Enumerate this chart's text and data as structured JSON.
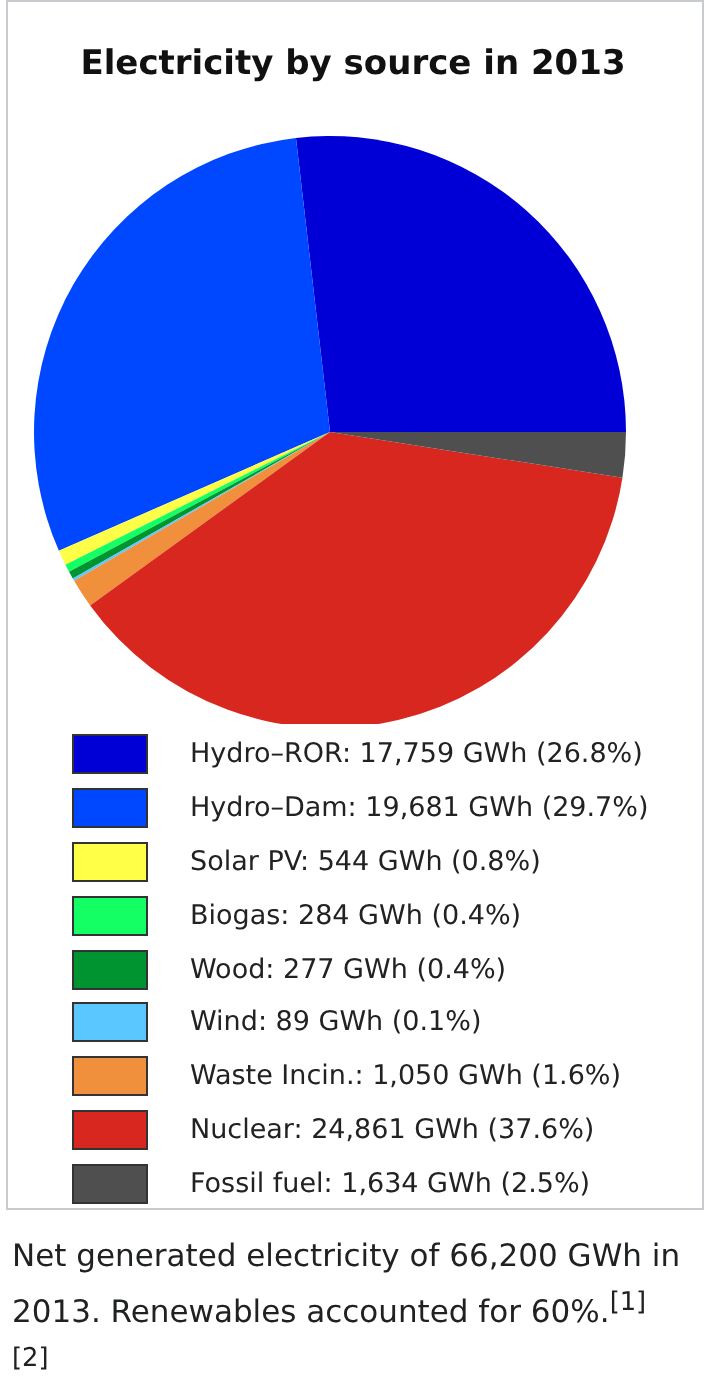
{
  "chart_data": {
    "type": "pie",
    "title": "Electricity by source in 2013",
    "categories": [
      "Hydro–ROR",
      "Hydro–Dam",
      "Solar PV",
      "Biogas",
      "Wood",
      "Wind",
      "Waste Incin.",
      "Nuclear",
      "Fossil fuel"
    ],
    "values": [
      17759,
      19681,
      544,
      284,
      277,
      89,
      1050,
      24861,
      1634
    ],
    "value_labels": [
      ": 17,759 GWh (26.8%)",
      ": 19,681 GWh (29.7%)",
      ": 544 GWh (0.8%)",
      ": 284 GWh (0.4%)",
      ": 277 GWh (0.4%)",
      ": 89 GWh (0.1%)",
      ": 1,050 GWh (1.6%)",
      ": 24,861 GWh (37.6%)",
      ": 1,634 GWh (2.5%)"
    ],
    "colors": [
      "#0000d6",
      "#0048ff",
      "#ffff47",
      "#14ff63",
      "#009431",
      "#5ac8ff",
      "#f08f3c",
      "#d8271e",
      "#4f4f4f"
    ],
    "legend": "bottom",
    "annotations": [
      "Net generated electricity of 66,200 GWh in 2013. Renewables accounted for 60%.$^{[1][2]}$"
    ]
  }
}
